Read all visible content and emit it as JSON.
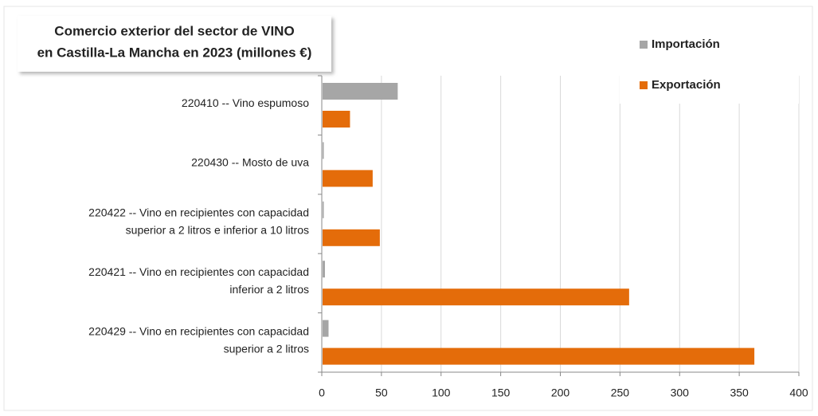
{
  "chart_data": {
    "type": "hbar",
    "title": [
      "Comercio exterior del sector de VINO",
      "en Castilla-La Mancha en 2023 (millones €)"
    ],
    "categories": [
      [
        "220410 -- Vino espumoso"
      ],
      [
        "220430 -- Mosto de uva"
      ],
      [
        "220422 -- Vino en recipientes con capacidad",
        "superior a 2 litros e inferior a 10 litros"
      ],
      [
        "220421 -- Vino en recipientes con capacidad",
        "inferior a 2 litros"
      ],
      [
        "220429 -- Vino en recipientes con capacidad",
        "superior a 2 litros"
      ]
    ],
    "series": [
      {
        "name": "Importación",
        "color": "#a6a6a6",
        "values": [
          63,
          1,
          1,
          2,
          5
        ]
      },
      {
        "name": "Exportación",
        "color": "#e46c0a",
        "values": [
          23,
          42,
          48,
          257,
          362
        ]
      }
    ],
    "xlim": [
      0,
      400
    ],
    "xticks": [
      0,
      50,
      100,
      150,
      200,
      250,
      300,
      350,
      400
    ],
    "grid": true,
    "legend": "top-right"
  }
}
